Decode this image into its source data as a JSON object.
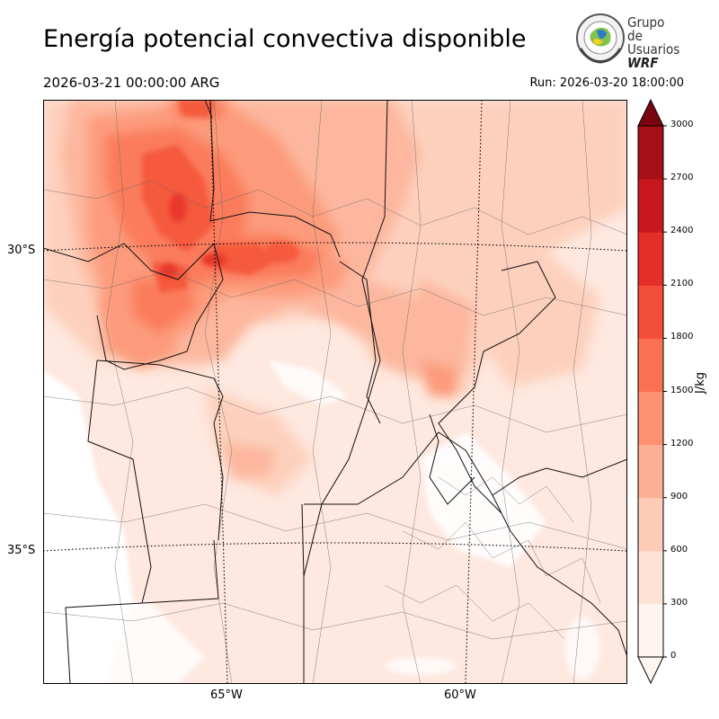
{
  "header": {
    "title": "Energía potencial convectiva disponible",
    "valid_time": "2026-03-21 00:00:00 ARG",
    "run": "Run: 2026-03-20 18:00:00"
  },
  "logo": {
    "line1": "Grupo de",
    "line2": "Usuarios",
    "line3": "WRF"
  },
  "map": {
    "lat_labels": [
      "30°S",
      "35°S"
    ],
    "lon_labels": [
      "65°W",
      "60°W"
    ]
  },
  "colorbar": {
    "unit": "J/kg",
    "ticks": [
      "0",
      "300",
      "600",
      "900",
      "1200",
      "1500",
      "1800",
      "2100",
      "2400",
      "2700",
      "3000"
    ],
    "colors": [
      "#fff5f0",
      "#fee2d6",
      "#fdcbb6",
      "#fcaf93",
      "#fc9070",
      "#fb7050",
      "#f44d38",
      "#e32f27",
      "#c9181d",
      "#a50f15",
      "#7a0510"
    ]
  }
}
